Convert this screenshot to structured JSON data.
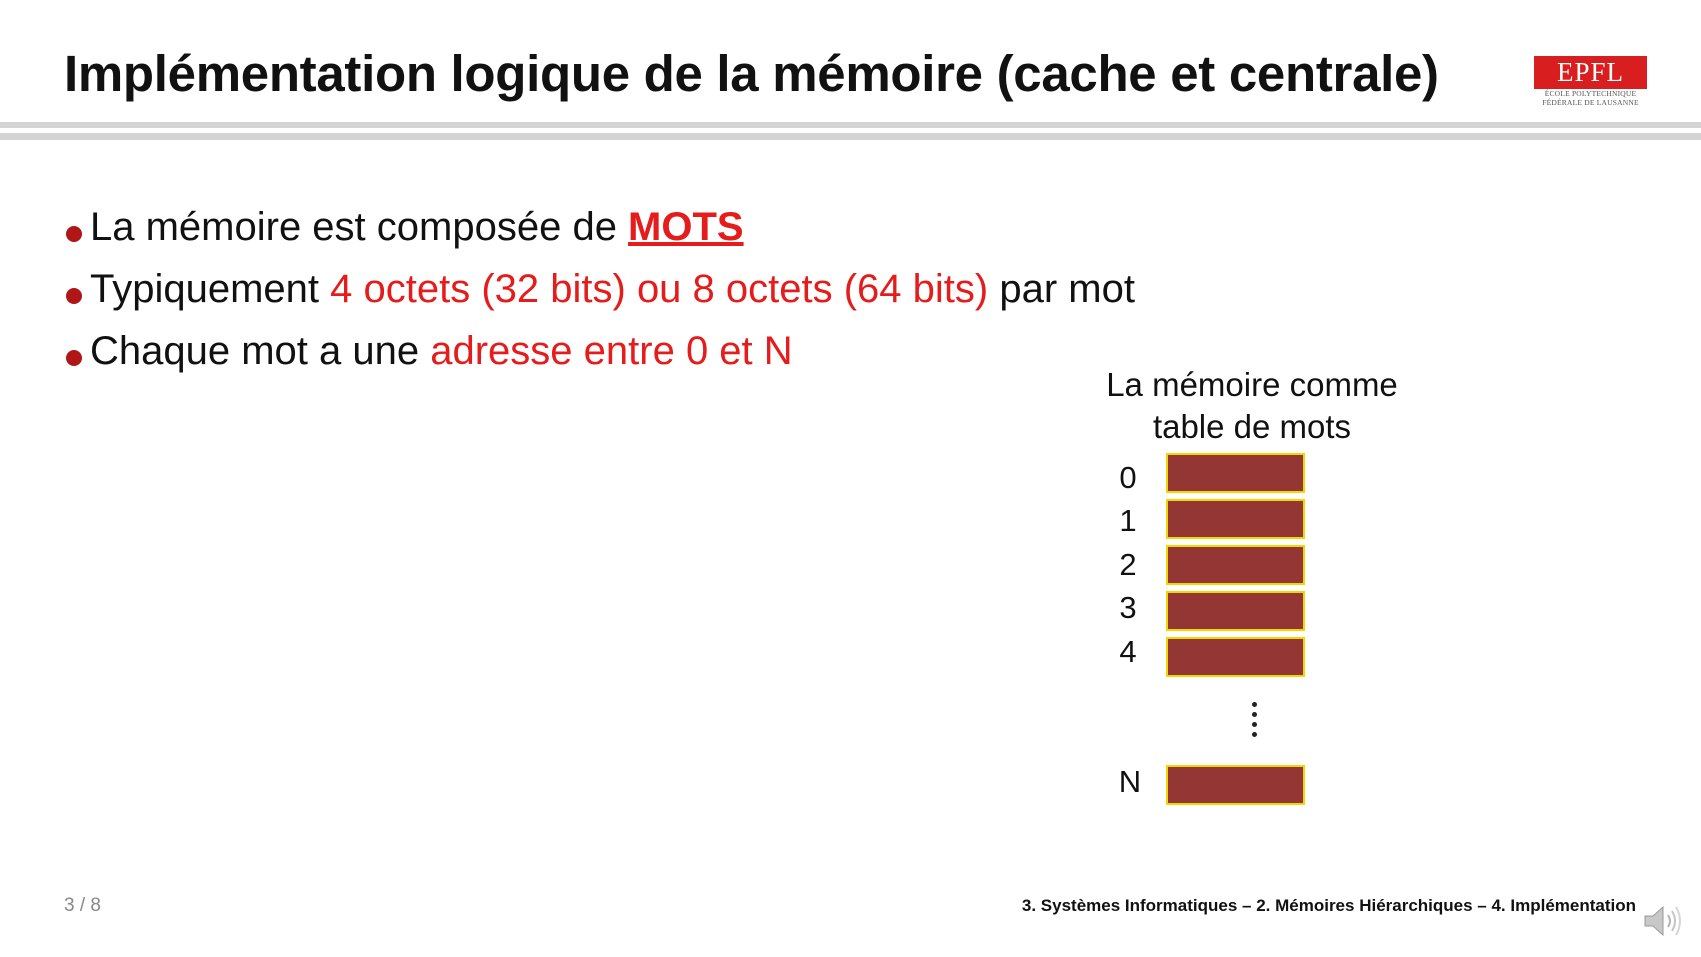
{
  "header": {
    "title": "Implémentation logique de la mémoire (cache et centrale)",
    "logo": {
      "mark": "EPFL",
      "line1": "ÉCOLE POLYTECHNIQUE",
      "line2": "FÉDÉRALE DE LAUSANNE",
      "color": "#d81e1e"
    }
  },
  "bullets": [
    {
      "text": "La mémoire est composée de ",
      "highlight": "MOTS",
      "after": ""
    },
    {
      "text": "Typiquement ",
      "highlight": "4 octets (32 bits) ou 8 octets (64 bits)",
      "after": " par mot"
    },
    {
      "text": "Chaque mot a une ",
      "highlight": "adresse entre 0 et N",
      "after": ""
    }
  ],
  "diagram": {
    "title_line1": "La mémoire comme",
    "title_line2": "table de mots",
    "addresses": [
      "0",
      "1",
      "2",
      "3",
      "4"
    ],
    "last_address": "N",
    "cell_color": "#943634",
    "cell_border_color": "#f0d800"
  },
  "footer": {
    "page": "3 / 8",
    "breadcrumb": "3. Systèmes Informatiques – 2. Mémoires Hiérarchiques – 4. Implémentation"
  },
  "icons": {
    "audio": "speaker-icon"
  },
  "colors": {
    "accent": "#e51c1c",
    "bullet": "#b01616"
  }
}
